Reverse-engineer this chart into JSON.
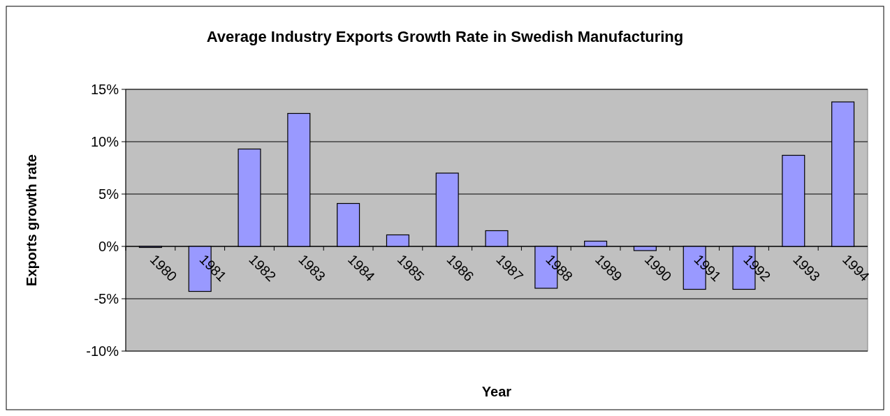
{
  "chart_data": {
    "type": "bar",
    "title": "Average Industry Exports Growth Rate in Swedish Manufacturing",
    "xlabel": "Year",
    "ylabel": "Exports growth rate",
    "categories": [
      "1980",
      "1981",
      "1982",
      "1983",
      "1984",
      "1985",
      "1986",
      "1987",
      "1988",
      "1989",
      "1990",
      "1991",
      "1992",
      "1993",
      "1994"
    ],
    "values": [
      -0.1,
      -4.3,
      9.3,
      12.7,
      4.1,
      1.1,
      7.0,
      1.5,
      -4.0,
      0.5,
      -0.4,
      -4.1,
      -4.1,
      8.7,
      13.8
    ],
    "color": "#9999ff",
    "ylim": [
      -10,
      15
    ],
    "yticks": [
      {
        "value": -10,
        "label": "-10%"
      },
      {
        "value": -5,
        "label": "-5%"
      },
      {
        "value": 0,
        "label": "0%"
      },
      {
        "value": 5,
        "label": "5%"
      },
      {
        "value": 10,
        "label": "10%"
      },
      {
        "value": 15,
        "label": "15%"
      }
    ],
    "grid": "y"
  }
}
